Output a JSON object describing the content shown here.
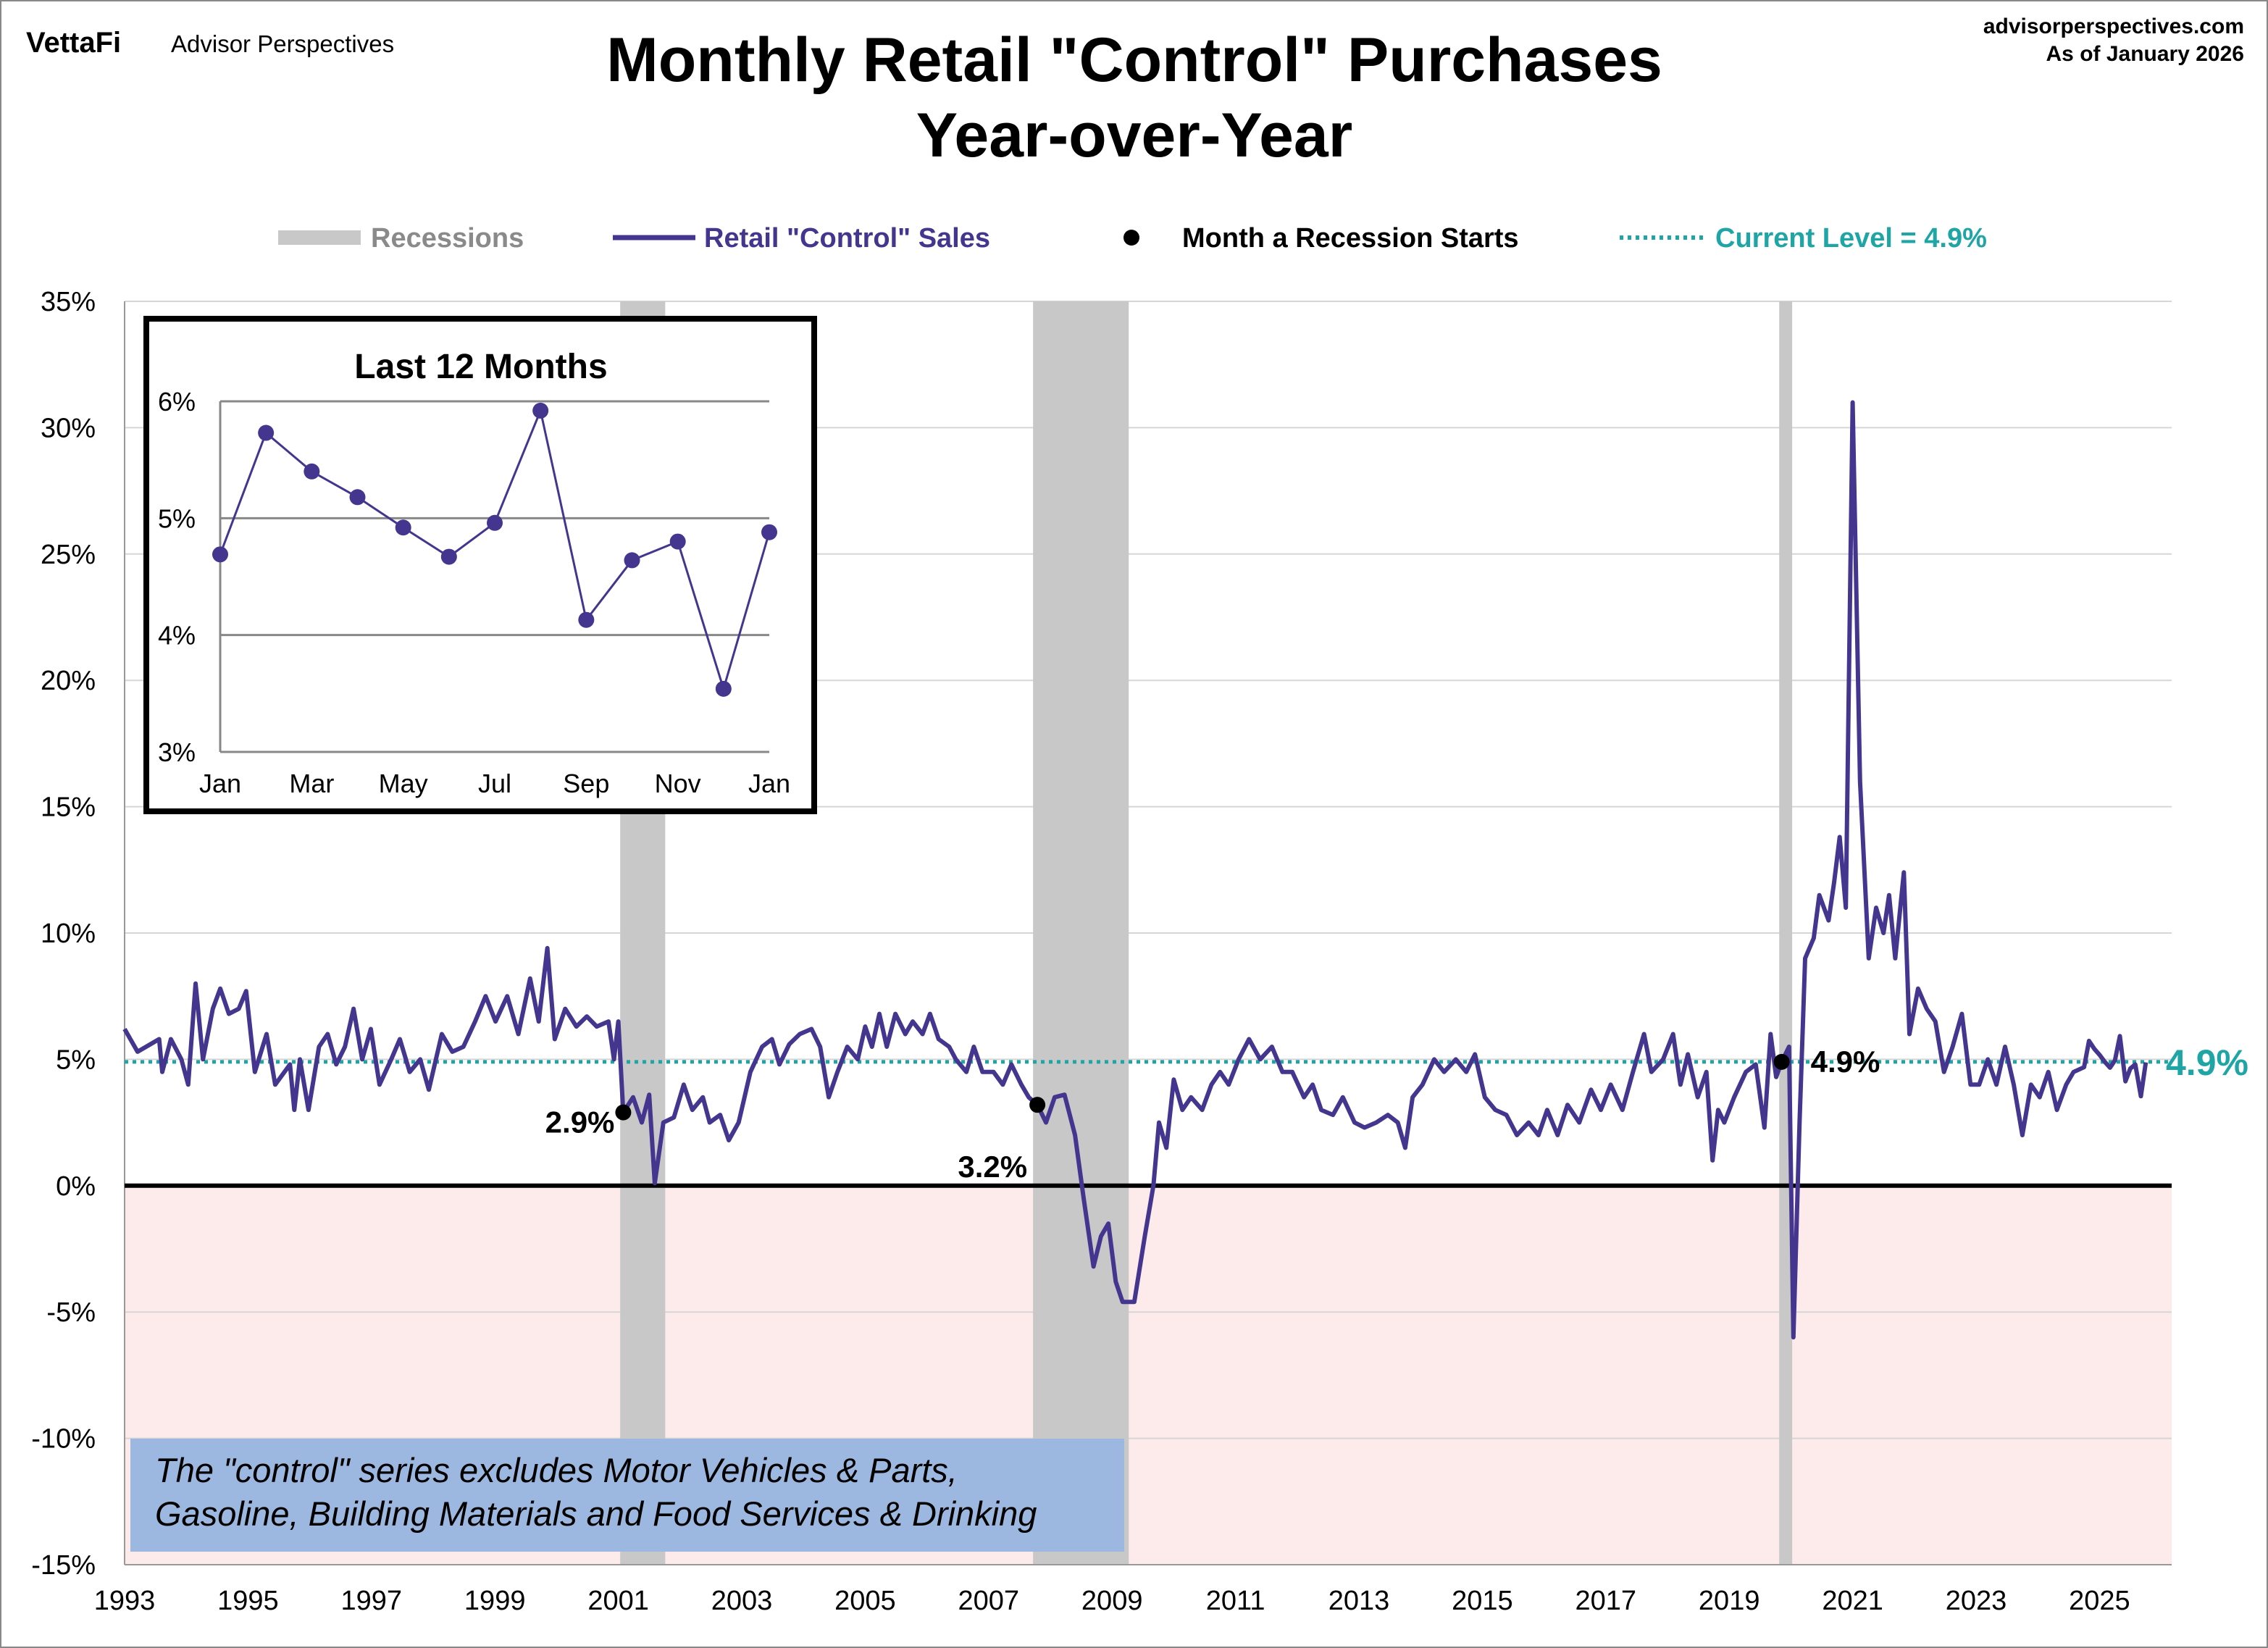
{
  "header": {
    "logo": "VettaFi",
    "brand": "Advisor Perspectives",
    "title_line1": "Monthly Retail \"Control\" Purchases",
    "title_line2": "Year-over-Year",
    "site": "advisorperspectives.com",
    "as_of": "As of January 2026"
  },
  "legend": {
    "recessions": "Recessions",
    "series": "Retail \"Control\" Sales",
    "recession_start": "Month a Recession Starts",
    "current": "Current Level = 4.9%"
  },
  "colors": {
    "series": "#44358e",
    "recession": "#c8c8c8",
    "current": "#1fa5a5",
    "negative_zone": "#fdeaea",
    "note_box": "#9db8e0"
  },
  "note": {
    "line1": "The \"control\" series excludes Motor Vehicles & Parts,",
    "line2": "Gasoline, Building Materials and Food Services & Drinking"
  },
  "chart_data": [
    {
      "type": "line",
      "title": "Monthly Retail \"Control\" Purchases Year-over-Year",
      "ylim": [
        -15,
        35
      ],
      "xlim": [
        1993,
        2026.6
      ],
      "grid": true,
      "legend": "top",
      "y_ticks": [
        "35%",
        "30%",
        "25%",
        "20%",
        "15%",
        "10%",
        "5%",
        "0%",
        "-5%",
        "-10%",
        "-15%"
      ],
      "y_tick_values": [
        35,
        30,
        25,
        20,
        15,
        10,
        5,
        0,
        -5,
        -10,
        -15
      ],
      "x_ticks": [
        "1993",
        "1995",
        "1997",
        "1999",
        "2001",
        "2003",
        "2005",
        "2007",
        "2009",
        "2011",
        "2013",
        "2015",
        "2017",
        "2019",
        "2021",
        "2023",
        "2025"
      ],
      "current_level": 4.9,
      "current_label": "4.9%",
      "recessions": [
        [
          2001.03,
          2001.76
        ],
        [
          2007.72,
          2009.27
        ],
        [
          2019.81,
          2020.02
        ]
      ],
      "recession_start_points": [
        {
          "x": 2001.08,
          "y": 2.9,
          "label": "2.9%"
        },
        {
          "x": 2007.79,
          "y": 3.2,
          "label": "3.2%"
        },
        {
          "x": 2019.85,
          "y": 4.9,
          "label": "4.9%"
        }
      ],
      "series": [
        {
          "name": "Retail \"Control\" Sales",
          "points": [
            [
              1993.0,
              6.2
            ],
            [
              1993.21,
              5.3
            ],
            [
              1993.56,
              5.8
            ],
            [
              1993.61,
              4.5
            ],
            [
              1993.75,
              5.8
            ],
            [
              1993.92,
              5.0
            ],
            [
              1994.03,
              4.0
            ],
            [
              1994.15,
              8.0
            ],
            [
              1994.27,
              5.0
            ],
            [
              1994.43,
              7.0
            ],
            [
              1994.55,
              7.8
            ],
            [
              1994.69,
              6.8
            ],
            [
              1994.85,
              7.0
            ],
            [
              1994.97,
              7.7
            ],
            [
              1995.11,
              4.5
            ],
            [
              1995.3,
              6.0
            ],
            [
              1995.44,
              4.0
            ],
            [
              1995.68,
              4.8
            ],
            [
              1995.75,
              3.0
            ],
            [
              1995.84,
              5.0
            ],
            [
              1995.98,
              3.0
            ],
            [
              1996.15,
              5.5
            ],
            [
              1996.29,
              6.0
            ],
            [
              1996.43,
              4.8
            ],
            [
              1996.57,
              5.5
            ],
            [
              1996.71,
              7.0
            ],
            [
              1996.85,
              5.0
            ],
            [
              1996.99,
              6.2
            ],
            [
              1997.13,
              4.0
            ],
            [
              1997.32,
              5.0
            ],
            [
              1997.46,
              5.8
            ],
            [
              1997.62,
              4.5
            ],
            [
              1997.79,
              5.0
            ],
            [
              1997.93,
              3.8
            ],
            [
              1998.14,
              6.0
            ],
            [
              1998.31,
              5.3
            ],
            [
              1998.49,
              5.5
            ],
            [
              1998.68,
              6.5
            ],
            [
              1998.85,
              7.5
            ],
            [
              1999.01,
              6.5
            ],
            [
              1999.2,
              7.5
            ],
            [
              1999.38,
              6.0
            ],
            [
              1999.57,
              8.2
            ],
            [
              1999.71,
              6.5
            ],
            [
              1999.85,
              9.4
            ],
            [
              1999.97,
              5.8
            ],
            [
              2000.14,
              7.0
            ],
            [
              2000.32,
              6.3
            ],
            [
              2000.49,
              6.7
            ],
            [
              2000.65,
              6.3
            ],
            [
              2000.84,
              6.5
            ],
            [
              2000.93,
              5.0
            ],
            [
              2001.0,
              6.5
            ],
            [
              2001.08,
              2.9
            ],
            [
              2001.24,
              3.5
            ],
            [
              2001.38,
              2.5
            ],
            [
              2001.5,
              3.6
            ],
            [
              2001.59,
              0.1
            ],
            [
              2001.73,
              2.5
            ],
            [
              2001.9,
              2.7
            ],
            [
              2002.06,
              4.0
            ],
            [
              2002.2,
              3.0
            ],
            [
              2002.37,
              3.5
            ],
            [
              2002.48,
              2.5
            ],
            [
              2002.65,
              2.8
            ],
            [
              2002.79,
              1.8
            ],
            [
              2002.95,
              2.5
            ],
            [
              2003.14,
              4.5
            ],
            [
              2003.33,
              5.5
            ],
            [
              2003.49,
              5.8
            ],
            [
              2003.61,
              4.8
            ],
            [
              2003.77,
              5.6
            ],
            [
              2003.94,
              6.0
            ],
            [
              2004.13,
              6.2
            ],
            [
              2004.27,
              5.5
            ],
            [
              2004.41,
              3.5
            ],
            [
              2004.55,
              4.5
            ],
            [
              2004.71,
              5.5
            ],
            [
              2004.88,
              5.0
            ],
            [
              2005.0,
              6.3
            ],
            [
              2005.11,
              5.5
            ],
            [
              2005.23,
              6.8
            ],
            [
              2005.35,
              5.5
            ],
            [
              2005.49,
              6.8
            ],
            [
              2005.65,
              6.0
            ],
            [
              2005.77,
              6.5
            ],
            [
              2005.93,
              6.0
            ],
            [
              2006.05,
              6.8
            ],
            [
              2006.19,
              5.8
            ],
            [
              2006.36,
              5.5
            ],
            [
              2006.47,
              5.0
            ],
            [
              2006.64,
              4.5
            ],
            [
              2006.76,
              5.5
            ],
            [
              2006.9,
              4.5
            ],
            [
              2007.08,
              4.5
            ],
            [
              2007.23,
              4.0
            ],
            [
              2007.37,
              4.8
            ],
            [
              2007.53,
              4.0
            ],
            [
              2007.65,
              3.5
            ],
            [
              2007.79,
              3.2
            ],
            [
              2007.93,
              2.5
            ],
            [
              2008.07,
              3.5
            ],
            [
              2008.23,
              3.6
            ],
            [
              2008.4,
              2.0
            ],
            [
              2008.54,
              -0.5
            ],
            [
              2008.7,
              -3.2
            ],
            [
              2008.82,
              -2.0
            ],
            [
              2008.94,
              -1.5
            ],
            [
              2009.06,
              -3.8
            ],
            [
              2009.17,
              -4.6
            ],
            [
              2009.36,
              -4.6
            ],
            [
              2009.53,
              -2.0
            ],
            [
              2009.67,
              0.0
            ],
            [
              2009.76,
              2.5
            ],
            [
              2009.88,
              1.5
            ],
            [
              2010.0,
              4.2
            ],
            [
              2010.14,
              3.0
            ],
            [
              2010.28,
              3.5
            ],
            [
              2010.46,
              3.0
            ],
            [
              2010.61,
              4.0
            ],
            [
              2010.75,
              4.5
            ],
            [
              2010.89,
              4.0
            ],
            [
              2011.05,
              5.0
            ],
            [
              2011.22,
              5.8
            ],
            [
              2011.4,
              5.0
            ],
            [
              2011.59,
              5.5
            ],
            [
              2011.76,
              4.5
            ],
            [
              2011.92,
              4.5
            ],
            [
              2012.11,
              3.5
            ],
            [
              2012.25,
              4.0
            ],
            [
              2012.39,
              3.0
            ],
            [
              2012.58,
              2.8
            ],
            [
              2012.74,
              3.5
            ],
            [
              2012.93,
              2.5
            ],
            [
              2013.09,
              2.3
            ],
            [
              2013.28,
              2.5
            ],
            [
              2013.47,
              2.8
            ],
            [
              2013.63,
              2.5
            ],
            [
              2013.75,
              1.5
            ],
            [
              2013.87,
              3.5
            ],
            [
              2014.03,
              4.0
            ],
            [
              2014.22,
              5.0
            ],
            [
              2014.38,
              4.5
            ],
            [
              2014.57,
              5.0
            ],
            [
              2014.74,
              4.5
            ],
            [
              2014.88,
              5.2
            ],
            [
              2015.04,
              3.5
            ],
            [
              2015.21,
              3.0
            ],
            [
              2015.39,
              2.8
            ],
            [
              2015.56,
              2.0
            ],
            [
              2015.75,
              2.5
            ],
            [
              2015.91,
              2.0
            ],
            [
              2016.05,
              3.0
            ],
            [
              2016.22,
              2.0
            ],
            [
              2016.38,
              3.2
            ],
            [
              2016.57,
              2.5
            ],
            [
              2016.76,
              3.8
            ],
            [
              2016.92,
              3.0
            ],
            [
              2017.08,
              4.0
            ],
            [
              2017.27,
              3.0
            ],
            [
              2017.44,
              4.5
            ],
            [
              2017.62,
              6.0
            ],
            [
              2017.74,
              4.5
            ],
            [
              2017.93,
              5.0
            ],
            [
              2018.09,
              6.0
            ],
            [
              2018.21,
              4.0
            ],
            [
              2018.33,
              5.2
            ],
            [
              2018.49,
              3.5
            ],
            [
              2018.63,
              4.5
            ],
            [
              2018.73,
              1.0
            ],
            [
              2018.82,
              3.0
            ],
            [
              2018.92,
              2.5
            ],
            [
              2019.08,
              3.5
            ],
            [
              2019.27,
              4.5
            ],
            [
              2019.43,
              4.8
            ],
            [
              2019.57,
              2.3
            ],
            [
              2019.67,
              6.0
            ],
            [
              2019.76,
              4.3
            ],
            [
              2019.85,
              4.9
            ],
            [
              2019.97,
              5.5
            ],
            [
              2020.04,
              -6.0
            ],
            [
              2020.14,
              2.5
            ],
            [
              2020.23,
              9.0
            ],
            [
              2020.37,
              9.8
            ],
            [
              2020.46,
              11.5
            ],
            [
              2020.61,
              10.5
            ],
            [
              2020.7,
              12.0
            ],
            [
              2020.79,
              13.8
            ],
            [
              2020.89,
              11.0
            ],
            [
              2021.0,
              31.0
            ],
            [
              2021.12,
              16.0
            ],
            [
              2021.26,
              9.0
            ],
            [
              2021.38,
              11.0
            ],
            [
              2021.5,
              10.0
            ],
            [
              2021.59,
              11.5
            ],
            [
              2021.69,
              9.0
            ],
            [
              2021.83,
              12.4
            ],
            [
              2021.92,
              6.0
            ],
            [
              2022.06,
              7.8
            ],
            [
              2022.2,
              7.0
            ],
            [
              2022.34,
              6.5
            ],
            [
              2022.48,
              4.5
            ],
            [
              2022.62,
              5.5
            ],
            [
              2022.77,
              6.8
            ],
            [
              2022.91,
              4.0
            ],
            [
              2023.05,
              4.0
            ],
            [
              2023.19,
              5.0
            ],
            [
              2023.33,
              4.0
            ],
            [
              2023.47,
              5.5
            ],
            [
              2023.61,
              4.0
            ],
            [
              2023.75,
              2.0
            ],
            [
              2023.89,
              4.0
            ],
            [
              2024.03,
              3.5
            ],
            [
              2024.17,
              4.5
            ],
            [
              2024.31,
              3.0
            ],
            [
              2024.46,
              4.0
            ],
            [
              2024.58,
              4.5
            ],
            [
              2024.75,
              4.69
            ],
            [
              2024.83,
              5.73
            ],
            [
              2024.92,
              5.4
            ],
            [
              2025.0,
              5.18
            ],
            [
              2025.08,
              4.92
            ],
            [
              2025.17,
              4.67
            ],
            [
              2025.25,
              4.96
            ],
            [
              2025.33,
              5.92
            ],
            [
              2025.42,
              4.13
            ],
            [
              2025.5,
              4.64
            ],
            [
              2025.58,
              4.8
            ],
            [
              2025.67,
              3.54
            ],
            [
              2025.75,
              4.88
            ]
          ]
        }
      ]
    },
    {
      "type": "line",
      "title": "Last 12 Months",
      "ylim": [
        3,
        6
      ],
      "y_ticks": [
        "6%",
        "5%",
        "4%",
        "3%"
      ],
      "y_tick_values": [
        6,
        5,
        4,
        3
      ],
      "categories": [
        "Jan",
        "Feb",
        "Mar",
        "Apr",
        "May",
        "Jun",
        "Jul",
        "Aug",
        "Sep",
        "Oct",
        "Nov",
        "Dec",
        "Jan"
      ],
      "x_tick_labels": [
        "Jan",
        "Mar",
        "May",
        "Jul",
        "Sep",
        "Nov",
        "Jan"
      ],
      "values": [
        4.69,
        5.73,
        5.4,
        5.18,
        4.92,
        4.67,
        4.96,
        5.92,
        4.13,
        4.64,
        4.8,
        3.54,
        4.88
      ]
    }
  ]
}
